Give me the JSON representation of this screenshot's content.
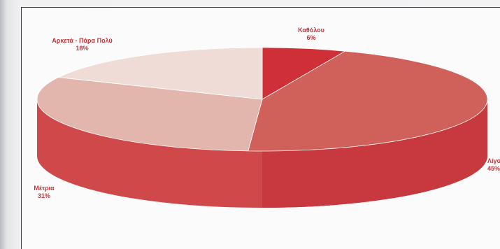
{
  "chart_data": {
    "type": "pie",
    "title": "",
    "slices": [
      {
        "label": "Καθόλου",
        "value": 6,
        "display": "6%"
      },
      {
        "label": "Λίγο",
        "value": 45,
        "display": "45%"
      },
      {
        "label": "Μέτρια",
        "value": 31,
        "display": "31%"
      },
      {
        "label": "Αρκετά - Πάρα Πολύ",
        "value": 18,
        "display": "18%"
      }
    ],
    "style": "3d",
    "colors": {
      "slice_0": "#cf2f36",
      "slice_1": "#d0605a",
      "slice_2": "#e2b6ad",
      "slice_3": "#efdcd7",
      "side": "#d0494a"
    }
  }
}
